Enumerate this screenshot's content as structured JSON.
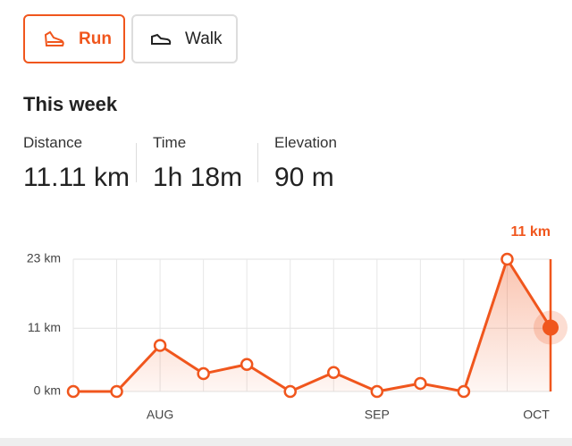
{
  "tabs": [
    {
      "label": "Run",
      "active": true
    },
    {
      "label": "Walk",
      "active": false
    }
  ],
  "section_title": "This week",
  "stats": [
    {
      "label": "Distance",
      "value": "11.11 km"
    },
    {
      "label": "Time",
      "value": "1h 18m"
    },
    {
      "label": "Elevation",
      "value": "90 m"
    }
  ],
  "chart_data": {
    "type": "line",
    "annotation": "11 km",
    "categories": [
      null,
      null,
      "AUG",
      null,
      null,
      null,
      null,
      "SEP",
      null,
      null,
      null,
      "OCT"
    ],
    "values": [
      0,
      0,
      8,
      3.1,
      4.7,
      0,
      3.3,
      0,
      1.4,
      0,
      23,
      11.11
    ],
    "color": "#f0561d",
    "ylim": [
      0,
      23
    ],
    "yticks": [
      {
        "value": 0,
        "label": "0 km"
      },
      {
        "value": 11,
        "label": "11 km"
      },
      {
        "value": 23,
        "label": "23 km"
      }
    ],
    "grid": true
  }
}
